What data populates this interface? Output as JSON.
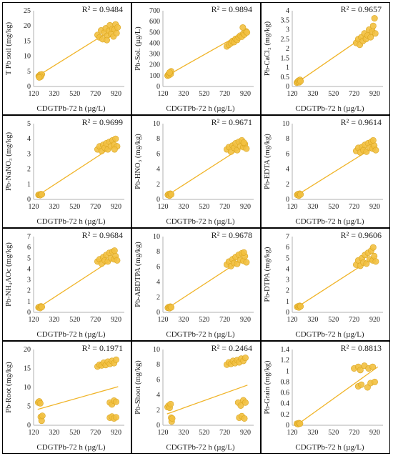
{
  "colors": {
    "point": "#f2c040",
    "point_stroke": "#d9a520",
    "line": "#f0b428",
    "axis": "#b0b0b0",
    "border": "#000000"
  },
  "chart_data": [
    {
      "type": "scatter",
      "ylabel": "T Pb soil (mg/kg)",
      "xlabel": "CDGTPb-72 h (µg/L)",
      "r2": "R² = 0.9484",
      "xlim": [
        120,
        1000
      ],
      "ylim": [
        0,
        25
      ],
      "yticks": [
        0,
        5,
        10,
        15,
        20,
        25
      ],
      "xticks": [
        120,
        320,
        520,
        720,
        920
      ],
      "trend": [
        [
          175,
          3.8
        ],
        [
          920,
          19.6
        ]
      ],
      "points": [
        [
          170,
          3.4
        ],
        [
          178,
          3.6
        ],
        [
          185,
          3.9
        ],
        [
          192,
          3.5
        ],
        [
          200,
          4.0
        ],
        [
          188,
          3.2
        ],
        [
          175,
          3.0
        ],
        [
          740,
          17.0
        ],
        [
          760,
          16.2
        ],
        [
          775,
          18.5
        ],
        [
          790,
          15.6
        ],
        [
          805,
          17.8
        ],
        [
          820,
          19.2
        ],
        [
          835,
          16.8
        ],
        [
          850,
          18.4
        ],
        [
          860,
          20.2
        ],
        [
          872,
          17.3
        ],
        [
          885,
          19.0
        ],
        [
          895,
          16.5
        ],
        [
          905,
          18.8
        ],
        [
          915,
          20.5
        ],
        [
          925,
          17.6
        ],
        [
          935,
          19.5
        ],
        [
          830,
          15.3
        ]
      ]
    },
    {
      "type": "scatter",
      "ylabel": "Pb-Sol. (µg/L)",
      "xlabel": "CDGTPb-72 h (µg/L)",
      "r2": "R² = 0.9894",
      "xlim": [
        120,
        1000
      ],
      "ylim": [
        0,
        700
      ],
      "yticks": [
        0,
        100,
        200,
        300,
        400,
        500,
        600,
        700
      ],
      "xticks": [
        120,
        320,
        520,
        720,
        920
      ],
      "trend": [
        [
          160,
          100
        ],
        [
          940,
          520
        ]
      ],
      "points": [
        [
          165,
          100
        ],
        [
          172,
          110
        ],
        [
          180,
          105
        ],
        [
          188,
          125
        ],
        [
          195,
          115
        ],
        [
          200,
          140
        ],
        [
          185,
          130
        ],
        [
          740,
          370
        ],
        [
          760,
          385
        ],
        [
          780,
          400
        ],
        [
          795,
          420
        ],
        [
          810,
          410
        ],
        [
          825,
          440
        ],
        [
          840,
          430
        ],
        [
          855,
          455
        ],
        [
          870,
          470
        ],
        [
          885,
          460
        ],
        [
          900,
          490
        ],
        [
          910,
          480
        ],
        [
          925,
          510
        ],
        [
          935,
          500
        ],
        [
          895,
          545
        ]
      ]
    },
    {
      "type": "scatter",
      "ylabel": "Pb-CaCl₂ (mg/kg)",
      "xlabel": "CDGTPb-72 h (µg/L)",
      "r2": "R² = 0.9657",
      "xlim": [
        120,
        1000
      ],
      "ylim": [
        0,
        4
      ],
      "yticks": [
        0,
        0.5,
        1,
        1.5,
        2,
        2.5,
        3,
        3.5,
        4
      ],
      "xticks": [
        120,
        320,
        520,
        720,
        920
      ],
      "trend": [
        [
          165,
          0.2
        ],
        [
          925,
          3.05
        ]
      ],
      "points": [
        [
          165,
          0.2
        ],
        [
          172,
          0.25
        ],
        [
          180,
          0.3
        ],
        [
          188,
          0.22
        ],
        [
          195,
          0.35
        ],
        [
          200,
          0.28
        ],
        [
          740,
          2.3
        ],
        [
          760,
          2.5
        ],
        [
          775,
          2.2
        ],
        [
          790,
          2.6
        ],
        [
          805,
          2.4
        ],
        [
          820,
          2.8
        ],
        [
          835,
          2.5
        ],
        [
          850,
          2.7
        ],
        [
          865,
          3.0
        ],
        [
          880,
          2.6
        ],
        [
          895,
          2.9
        ],
        [
          905,
          3.2
        ],
        [
          918,
          3.6
        ],
        [
          925,
          2.8
        ]
      ]
    },
    {
      "type": "scatter",
      "ylabel": "Pb-NaNO₃ (mg/kg)",
      "xlabel": "CDGTPb-72 h (µg/L)",
      "r2": "R² = 0.9699",
      "xlim": [
        120,
        1000
      ],
      "ylim": [
        0,
        5
      ],
      "yticks": [
        0,
        1,
        2,
        3,
        4,
        5
      ],
      "xticks": [
        120,
        320,
        520,
        720,
        920
      ],
      "trend": [
        [
          170,
          0.3
        ],
        [
          935,
          3.7
        ]
      ],
      "points": [
        [
          168,
          0.3
        ],
        [
          176,
          0.32
        ],
        [
          184,
          0.28
        ],
        [
          192,
          0.35
        ],
        [
          200,
          0.33
        ],
        [
          740,
          3.3
        ],
        [
          760,
          3.5
        ],
        [
          780,
          3.2
        ],
        [
          795,
          3.6
        ],
        [
          810,
          3.4
        ],
        [
          825,
          3.7
        ],
        [
          840,
          3.3
        ],
        [
          855,
          3.8
        ],
        [
          870,
          3.5
        ],
        [
          885,
          3.9
        ],
        [
          900,
          3.6
        ],
        [
          915,
          4.0
        ],
        [
          930,
          3.5
        ],
        [
          905,
          3.3
        ]
      ]
    },
    {
      "type": "scatter",
      "ylabel": "Pb-HNO₃ (mg/kg)",
      "xlabel": "CDGTPb-72 h (µg/L)",
      "r2": "R² = 0.9671",
      "xlim": [
        120,
        1000
      ],
      "ylim": [
        0,
        10
      ],
      "yticks": [
        0,
        2,
        4,
        6,
        8,
        10
      ],
      "xticks": [
        120,
        320,
        520,
        720,
        920
      ],
      "trend": [
        [
          170,
          0.6
        ],
        [
          935,
          7.3
        ]
      ],
      "points": [
        [
          168,
          0.6
        ],
        [
          176,
          0.7
        ],
        [
          184,
          0.5
        ],
        [
          192,
          0.75
        ],
        [
          200,
          0.65
        ],
        [
          740,
          6.6
        ],
        [
          760,
          6.9
        ],
        [
          780,
          6.3
        ],
        [
          795,
          7.1
        ],
        [
          810,
          6.8
        ],
        [
          825,
          7.4
        ],
        [
          840,
          6.5
        ],
        [
          855,
          7.6
        ],
        [
          870,
          7.0
        ],
        [
          885,
          7.8
        ],
        [
          900,
          6.9
        ],
        [
          915,
          7.3
        ],
        [
          930,
          6.7
        ],
        [
          905,
          7.5
        ]
      ]
    },
    {
      "type": "scatter",
      "ylabel": "Pb-EDTA (mg/kg)",
      "xlabel": "CDGTPb-72 h (µg/L)",
      "r2": "R² = 0.9614",
      "xlim": [
        120,
        1000
      ],
      "ylim": [
        0,
        10
      ],
      "yticks": [
        0,
        2,
        4,
        6,
        8,
        10
      ],
      "xticks": [
        120,
        320,
        520,
        720,
        920
      ],
      "trend": [
        [
          170,
          0.6
        ],
        [
          935,
          7.1
        ]
      ],
      "points": [
        [
          168,
          0.6
        ],
        [
          176,
          0.7
        ],
        [
          184,
          0.5
        ],
        [
          192,
          0.75
        ],
        [
          200,
          0.65
        ],
        [
          740,
          6.4
        ],
        [
          760,
          6.8
        ],
        [
          780,
          6.2
        ],
        [
          795,
          6.9
        ],
        [
          810,
          6.5
        ],
        [
          825,
          7.2
        ],
        [
          840,
          6.3
        ],
        [
          855,
          7.4
        ],
        [
          870,
          6.8
        ],
        [
          885,
          7.6
        ],
        [
          900,
          6.7
        ],
        [
          915,
          7.1
        ],
        [
          930,
          6.5
        ],
        [
          905,
          7.8
        ]
      ]
    },
    {
      "type": "scatter",
      "ylabel": "Pb-NH₄AOc (mg/kg)",
      "xlabel": "CDGTPb-72 h (µg/L)",
      "r2": "R² = 0.9684",
      "xlim": [
        120,
        1000
      ],
      "ylim": [
        0,
        7
      ],
      "yticks": [
        0,
        1,
        2,
        3,
        4,
        5,
        6,
        7
      ],
      "xticks": [
        120,
        320,
        520,
        720,
        920
      ],
      "trend": [
        [
          170,
          0.45
        ],
        [
          935,
          5.2
        ]
      ],
      "points": [
        [
          168,
          0.45
        ],
        [
          176,
          0.5
        ],
        [
          184,
          0.4
        ],
        [
          192,
          0.55
        ],
        [
          200,
          0.5
        ],
        [
          740,
          4.7
        ],
        [
          760,
          4.9
        ],
        [
          780,
          4.5
        ],
        [
          795,
          5.1
        ],
        [
          810,
          4.8
        ],
        [
          825,
          5.3
        ],
        [
          840,
          4.7
        ],
        [
          855,
          5.5
        ],
        [
          870,
          5.0
        ],
        [
          885,
          5.6
        ],
        [
          900,
          4.9
        ],
        [
          915,
          5.2
        ],
        [
          930,
          4.8
        ],
        [
          905,
          5.7
        ]
      ]
    },
    {
      "type": "scatter",
      "ylabel": "Pb-ABDTPA (mg/kg)",
      "xlabel": "CDGTPb-72 h (µg/L)",
      "r2": "R² = 0.9678",
      "xlim": [
        120,
        1000
      ],
      "ylim": [
        0,
        10
      ],
      "yticks": [
        0,
        2,
        4,
        6,
        8,
        10
      ],
      "xticks": [
        120,
        320,
        520,
        720,
        920
      ],
      "trend": [
        [
          170,
          0.6
        ],
        [
          935,
          7.4
        ]
      ],
      "points": [
        [
          168,
          0.6
        ],
        [
          176,
          0.7
        ],
        [
          184,
          0.55
        ],
        [
          192,
          0.75
        ],
        [
          200,
          0.65
        ],
        [
          740,
          6.3
        ],
        [
          760,
          6.7
        ],
        [
          780,
          6.1
        ],
        [
          795,
          7.0
        ],
        [
          810,
          6.5
        ],
        [
          825,
          7.3
        ],
        [
          840,
          6.4
        ],
        [
          855,
          7.6
        ],
        [
          870,
          6.9
        ],
        [
          885,
          7.8
        ],
        [
          900,
          6.8
        ],
        [
          915,
          7.4
        ],
        [
          930,
          6.6
        ],
        [
          905,
          7.9
        ]
      ]
    },
    {
      "type": "scatter",
      "ylabel": "Pb-DTPA (mg/kg)",
      "xlabel": "CDGTPb-72 h (µg/L)",
      "r2": "R² = 0.9606",
      "xlim": [
        120,
        1000
      ],
      "ylim": [
        0,
        7
      ],
      "yticks": [
        0,
        1,
        2,
        3,
        4,
        5,
        6,
        7
      ],
      "xticks": [
        120,
        320,
        520,
        720,
        920
      ],
      "trend": [
        [
          170,
          0.5
        ],
        [
          935,
          5.2
        ]
      ],
      "points": [
        [
          168,
          0.5
        ],
        [
          176,
          0.55
        ],
        [
          184,
          0.45
        ],
        [
          192,
          0.6
        ],
        [
          200,
          0.55
        ],
        [
          740,
          4.4
        ],
        [
          760,
          4.8
        ],
        [
          780,
          4.3
        ],
        [
          795,
          5.0
        ],
        [
          810,
          4.6
        ],
        [
          825,
          5.3
        ],
        [
          840,
          4.5
        ],
        [
          855,
          5.5
        ],
        [
          870,
          4.9
        ],
        [
          885,
          5.7
        ],
        [
          900,
          4.8
        ],
        [
          915,
          5.2
        ],
        [
          930,
          4.7
        ],
        [
          905,
          6.0
        ]
      ]
    },
    {
      "type": "scatter",
      "ylabel": "Pb-Root (mg/kg)",
      "xlabel": "CDGTPb-72 h (µg/L)",
      "r2": "R² = 0.1971",
      "xlim": [
        120,
        1000
      ],
      "ylim": [
        0,
        20
      ],
      "yticks": [
        0,
        5,
        10,
        15,
        20
      ],
      "xticks": [
        120,
        320,
        520,
        720,
        920
      ],
      "trend": [
        [
          160,
          4.2
        ],
        [
          940,
          10.2
        ]
      ],
      "points": [
        [
          165,
          6.0
        ],
        [
          175,
          6.3
        ],
        [
          185,
          5.8
        ],
        [
          190,
          2.2
        ],
        [
          198,
          1.2
        ],
        [
          205,
          2.5
        ],
        [
          740,
          15.5
        ],
        [
          760,
          16.0
        ],
        [
          780,
          15.8
        ],
        [
          800,
          16.5
        ],
        [
          820,
          15.9
        ],
        [
          840,
          16.8
        ],
        [
          860,
          16.2
        ],
        [
          880,
          17.0
        ],
        [
          900,
          16.4
        ],
        [
          920,
          17.3
        ],
        [
          860,
          6.0
        ],
        [
          880,
          5.5
        ],
        [
          900,
          6.5
        ],
        [
          920,
          6.2
        ],
        [
          860,
          2.0
        ],
        [
          880,
          2.3
        ],
        [
          900,
          1.8
        ],
        [
          920,
          2.1
        ]
      ]
    },
    {
      "type": "scatter",
      "ylabel": "Pb-Shoot (mg/kg)",
      "xlabel": "CDGTPb-72 h (µg/L)",
      "r2": "R² = 0.2464",
      "xlim": [
        120,
        1000
      ],
      "ylim": [
        0,
        10
      ],
      "yticks": [
        0,
        2,
        4,
        6,
        8,
        10
      ],
      "xticks": [
        120,
        320,
        520,
        720,
        920
      ],
      "trend": [
        [
          160,
          1.5
        ],
        [
          940,
          5.3
        ]
      ],
      "points": [
        [
          165,
          2.4
        ],
        [
          175,
          2.6
        ],
        [
          185,
          2.3
        ],
        [
          195,
          2.8
        ],
        [
          200,
          1.0
        ],
        [
          205,
          0.5
        ],
        [
          210,
          0.9
        ],
        [
          740,
          8.0
        ],
        [
          760,
          8.3
        ],
        [
          780,
          8.1
        ],
        [
          800,
          8.5
        ],
        [
          820,
          8.2
        ],
        [
          840,
          8.6
        ],
        [
          860,
          8.3
        ],
        [
          880,
          8.8
        ],
        [
          900,
          8.5
        ],
        [
          920,
          8.9
        ],
        [
          850,
          3.0
        ],
        [
          875,
          2.6
        ],
        [
          900,
          3.3
        ],
        [
          920,
          3.0
        ],
        [
          860,
          1.0
        ],
        [
          885,
          1.2
        ],
        [
          910,
          0.9
        ]
      ]
    },
    {
      "type": "scatter",
      "ylabel": "Pb-Grain (mg/kg)",
      "xlabel": "CDGTPb-72 h (µg/L)",
      "r2": "R² = 0.8813",
      "xlim": [
        120,
        1000
      ],
      "ylim": [
        0,
        1.4
      ],
      "yticks": [
        0,
        0.2,
        0.4,
        0.6,
        0.8,
        1,
        1.2,
        1.4
      ],
      "xticks": [
        120,
        320,
        520,
        720,
        920
      ],
      "trend": [
        [
          160,
          0.0
        ],
        [
          950,
          1.08
        ]
      ],
      "points": [
        [
          165,
          0.03
        ],
        [
          175,
          0.02
        ],
        [
          185,
          0.04
        ],
        [
          195,
          0.03
        ],
        [
          720,
          1.05
        ],
        [
          760,
          1.08
        ],
        [
          780,
          1.02
        ],
        [
          820,
          1.1
        ],
        [
          860,
          1.05
        ],
        [
          900,
          1.08
        ],
        [
          760,
          0.72
        ],
        [
          790,
          0.75
        ],
        [
          850,
          0.7
        ],
        [
          880,
          0.78
        ],
        [
          920,
          0.8
        ]
      ]
    }
  ]
}
